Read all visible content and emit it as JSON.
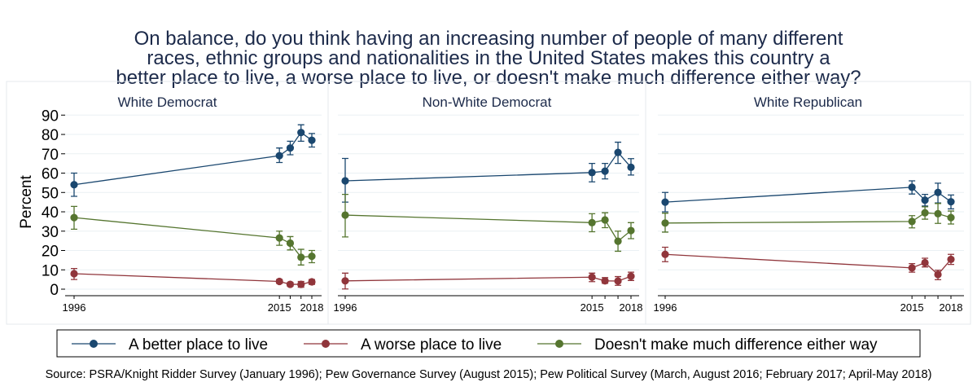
{
  "chart_data": {
    "type": "line",
    "title": [
      "On balance, do you think having an increasing number of people of many different",
      "races, ethnic groups and nationalities in the United States makes this country a",
      "better place to live, a worse place to live, or doesn't make much difference either way?"
    ],
    "ylabel": "Percent",
    "ylim": [
      0,
      90
    ],
    "yticks": [
      "0",
      "10",
      "20",
      "30",
      "40",
      "50",
      "60",
      "70",
      "80",
      "90"
    ],
    "x": [
      1996,
      2015,
      2016,
      2017,
      2018
    ],
    "xtick_labels": [
      "1996",
      "2015",
      "2018"
    ],
    "grid": true,
    "legend": [
      "A better place to live",
      "A worse place to live",
      "Doesn't make much difference either way"
    ],
    "legend_position": "bottom",
    "colors": [
      "#1a476f",
      "#90353b",
      "#55752f"
    ],
    "panels": [
      {
        "title": "White Democrat",
        "series": [
          {
            "name": "A better place to live",
            "values": [
              54,
              69,
              73,
              81,
              77
            ],
            "lo": [
              48,
              65.5,
              69.5,
              76.5,
              73.5
            ],
            "hi": [
              60,
              73,
              76.5,
              85,
              80.5
            ]
          },
          {
            "name": "A worse place to live",
            "values": [
              8,
              4,
              2.5,
              2.5,
              3.8
            ],
            "lo": [
              5,
              3,
              1.5,
              1,
              2.5
            ],
            "hi": [
              10.7,
              5,
              3.5,
              4,
              5
            ]
          },
          {
            "name": "Doesn't make much difference either way",
            "values": [
              37,
              26.5,
              23.8,
              16.5,
              17
            ],
            "lo": [
              31,
              22.7,
              20.3,
              12.5,
              13.7
            ],
            "hi": [
              42.8,
              30,
              27.2,
              20.6,
              20
            ]
          }
        ]
      },
      {
        "title": "Non-White Democrat",
        "series": [
          {
            "name": "A better place to live",
            "values": [
              56,
              60.3,
              61,
              70.7,
              63
            ],
            "lo": [
              45,
              55.5,
              57,
              65,
              59
            ],
            "hi": [
              67.6,
              65,
              65,
              76,
              67.5
            ]
          },
          {
            "name": "A worse place to live",
            "values": [
              4.3,
              6.2,
              4.3,
              4.2,
              6.7
            ],
            "lo": [
              0.1,
              3.9,
              3,
              2,
              4.5
            ],
            "hi": [
              8.3,
              8.3,
              6,
              6.5,
              8.8
            ]
          },
          {
            "name": "Doesn't make much difference either way",
            "values": [
              38.3,
              34.4,
              35.8,
              24.8,
              30.3
            ],
            "lo": [
              27,
              29.7,
              31.8,
              19.6,
              26.1
            ],
            "hi": [
              49,
              39,
              39.5,
              30,
              34.4
            ]
          }
        ]
      },
      {
        "title": "White Republican",
        "series": [
          {
            "name": "A better place to live",
            "values": [
              45,
              52.7,
              46,
              50,
              45.2
            ],
            "lo": [
              40,
              49.2,
              43,
              44.6,
              41.5
            ],
            "hi": [
              50,
              56,
              49,
              54.8,
              48.7
            ]
          },
          {
            "name": "A worse place to live",
            "values": [
              18,
              11,
              13.7,
              7.6,
              15.4
            ],
            "lo": [
              14.2,
              8.8,
              11.5,
              4.9,
              12.8
            ],
            "hi": [
              21.7,
              13.2,
              16,
              9.8,
              18
            ]
          },
          {
            "name": "Doesn't make much difference either way",
            "values": [
              34.2,
              35,
              39.5,
              39,
              37
            ],
            "lo": [
              29.5,
              31.7,
              36.2,
              34,
              33.7
            ],
            "hi": [
              39.3,
              38,
              42.6,
              44.3,
              40.4
            ]
          }
        ]
      }
    ],
    "source": "Source: PSRA/Knight Ridder Survey (January 1996); Pew Governance Survey (August 2015); Pew Political Survey (March, August 2016; February 2017; April-May 2018)"
  }
}
